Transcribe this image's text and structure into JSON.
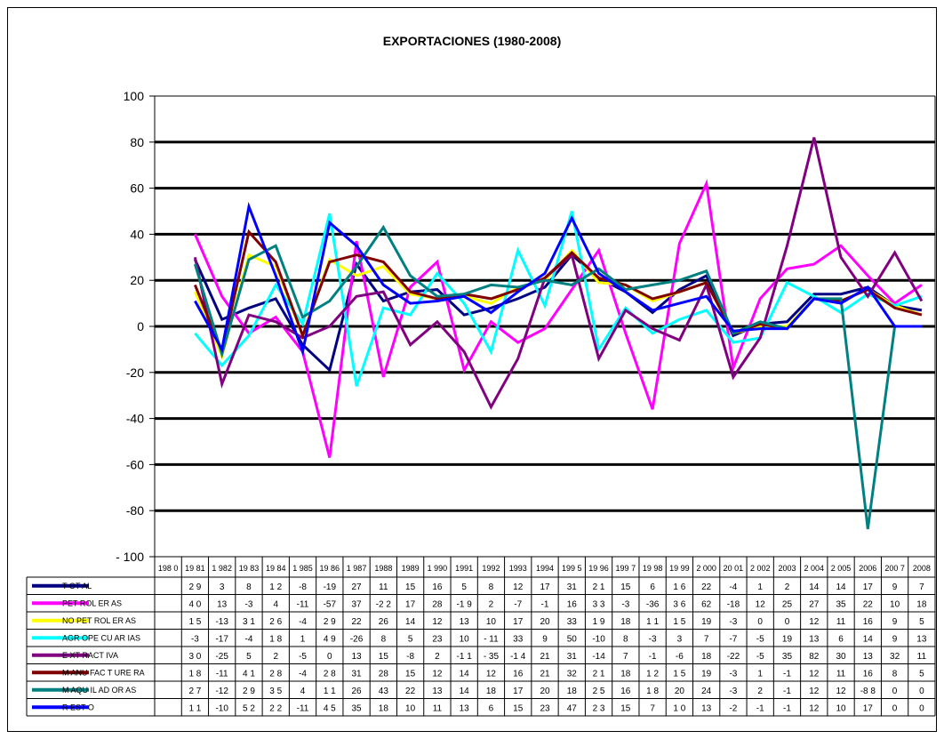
{
  "chart_data": {
    "type": "line",
    "title": "EXPORTACIONES (1980-2008)",
    "xlabel": "",
    "ylabel": "",
    "ylim": [
      -100,
      100
    ],
    "yticks": [
      100,
      80,
      60,
      40,
      20,
      0,
      -20,
      -40,
      -60,
      -80,
      -100
    ],
    "ytick_labels": [
      "100",
      "80",
      "60",
      "40",
      "20",
      "0",
      "-20",
      "-40",
      "-60",
      "-80",
      "- 100"
    ],
    "grid": true,
    "legend": "table-below",
    "categories": [
      "1980",
      "1981",
      "1982",
      "1983",
      "1984",
      "1985",
      "1986",
      "1987",
      "1988",
      "1989",
      "1990",
      "1991",
      "1992",
      "1993",
      "1994",
      "1995",
      "1996",
      "1997",
      "1998",
      "1999",
      "2000",
      "2001",
      "2002",
      "2003",
      "2004",
      "2005",
      "2006",
      "2007",
      "2008"
    ],
    "category_labels": [
      "198 0",
      "19 81",
      "1 982",
      "19 83",
      "19 84",
      "1 985",
      "19 86",
      "1 987",
      "1988",
      "1989",
      "1 990",
      "1991",
      "1992",
      "1993",
      "1994",
      "199 5",
      "19 96",
      "199 7",
      "19 98",
      "19 99",
      "2 000",
      "20 01",
      "2 002",
      "2003",
      "2 004",
      "2 005",
      "2006",
      "200 7",
      "2008"
    ],
    "series": [
      {
        "name": "TOTAL",
        "label": "T OT AL",
        "color": "#000080",
        "values": [
          null,
          29,
          3,
          8,
          12,
          -8,
          -19,
          27,
          11,
          15,
          16,
          5,
          8,
          12,
          17,
          31,
          21,
          15,
          6,
          16,
          22,
          -4,
          1,
          2,
          14,
          14,
          17,
          9,
          7
        ],
        "labels": [
          "",
          "2 9",
          "3",
          "8",
          "1 2",
          "-8",
          "-19",
          "27",
          "11",
          "15",
          "16",
          "5",
          "8",
          "12",
          "17",
          "31",
          "2 1",
          "15",
          "6",
          "1 6",
          "22",
          "-4",
          "1",
          "2",
          "14",
          "14",
          "17",
          "9",
          "7"
        ]
      },
      {
        "name": "PETROLERAS",
        "label": "PET ROL ER AS",
        "color": "#ff00ff",
        "values": [
          null,
          40,
          13,
          -3,
          4,
          -11,
          -57,
          37,
          -22,
          17,
          28,
          -19,
          2,
          -7,
          -1,
          16,
          33,
          -3,
          -36,
          36,
          62,
          -18,
          12,
          25,
          27,
          35,
          22,
          10,
          18
        ],
        "labels": [
          "",
          "4 0",
          "13",
          "-3",
          "4",
          "-11",
          "-57",
          "37",
          "-2 2",
          "17",
          "28",
          "-1 9",
          "2",
          "-7",
          "-1",
          "16",
          "3 3",
          "-3",
          "-36",
          "3 6",
          "62",
          "-18",
          "12",
          "25",
          "27",
          "35",
          "22",
          "10",
          "18"
        ]
      },
      {
        "name": "NO PETROLERAS",
        "label": "NO PET ROL ER AS",
        "color": "#ffff00",
        "values": [
          null,
          15,
          -13,
          31,
          26,
          -4,
          29,
          22,
          26,
          14,
          12,
          13,
          10,
          17,
          20,
          33,
          19,
          18,
          11,
          15,
          19,
          -3,
          0,
          0,
          12,
          11,
          16,
          9,
          5
        ],
        "labels": [
          "",
          "1 5",
          "-13",
          "3 1",
          "2 6",
          "-4",
          "2 9",
          "22",
          "26",
          "14",
          "12",
          "13",
          "10",
          "17",
          "20",
          "33",
          "1 9",
          "18",
          "1 1",
          "1 5",
          "19",
          "-3",
          "0",
          "0",
          "12",
          "11",
          "16",
          "9",
          "5"
        ]
      },
      {
        "name": "AGROPECUARIAS",
        "label": "AGR OPE CU AR IAS",
        "color": "#00ffff",
        "values": [
          null,
          -3,
          -17,
          -4,
          18,
          1,
          49,
          -26,
          8,
          5,
          23,
          10,
          -11,
          33,
          9,
          50,
          -10,
          8,
          -3,
          3,
          7,
          -7,
          -5,
          19,
          13,
          6,
          14,
          9,
          13
        ],
        "labels": [
          "",
          "-3",
          "-17",
          "-4",
          "1 8",
          "1",
          "4 9",
          "-26",
          "8",
          "5",
          "23",
          "10",
          "- 11",
          "33",
          "9",
          "50",
          "-10",
          "8",
          "-3",
          "3",
          "7",
          "-7",
          "-5",
          "19",
          "13",
          "6",
          "14",
          "9",
          "13"
        ]
      },
      {
        "name": "EXTRACTIVA",
        "label": "E XT RACT IVA",
        "color": "#800080",
        "values": [
          null,
          30,
          -25,
          5,
          2,
          -5,
          0,
          13,
          15,
          -8,
          2,
          -11,
          -35,
          -14,
          21,
          31,
          -14,
          7,
          -1,
          -6,
          18,
          -22,
          -5,
          35,
          82,
          30,
          13,
          32,
          11
        ],
        "labels": [
          "",
          "3 0",
          "-25",
          "5",
          "2",
          "-5",
          "0",
          "13",
          "15",
          "-8",
          "2",
          "-1 1",
          "- 35",
          "-1 4",
          "21",
          "31",
          "-14",
          "7",
          "-1",
          "-6",
          "18",
          "-22",
          "-5",
          "35",
          "82",
          "30",
          "13",
          "32",
          "11"
        ]
      },
      {
        "name": "MANUFACTURERA",
        "label": "M ANU FAC T URE RA",
        "color": "#800000",
        "values": [
          null,
          18,
          -11,
          41,
          28,
          -4,
          28,
          31,
          28,
          15,
          12,
          14,
          12,
          16,
          21,
          32,
          21,
          18,
          12,
          15,
          19,
          -3,
          1,
          -1,
          12,
          11,
          16,
          8,
          5
        ],
        "labels": [
          "",
          "1 8",
          "-11",
          "4 1",
          "2 8",
          "-4",
          "2 8",
          "31",
          "28",
          "15",
          "12",
          "14",
          "12",
          "16",
          "21",
          "32",
          "2 1",
          "18",
          "1 2",
          "1 5",
          "19",
          "-3",
          "1",
          "-1",
          "12",
          "11",
          "16",
          "8",
          "5"
        ]
      },
      {
        "name": "MAQUILADORAS",
        "label": "M AQU IL AD OR AS",
        "color": "#008080",
        "values": [
          null,
          27,
          -12,
          29,
          35,
          4,
          11,
          26,
          43,
          22,
          13,
          14,
          18,
          17,
          20,
          18,
          25,
          16,
          18,
          20,
          24,
          -3,
          2,
          -1,
          12,
          12,
          -88,
          0,
          0
        ],
        "labels": [
          "",
          "2 7",
          "-12",
          "2 9",
          "3 5",
          "4",
          "1 1",
          "26",
          "43",
          "22",
          "13",
          "14",
          "18",
          "17",
          "20",
          "18",
          "2 5",
          "16",
          "1 8",
          "20",
          "24",
          "-3",
          "2",
          "-1",
          "12",
          "12",
          "-8 8",
          "0",
          "0"
        ]
      },
      {
        "name": "RESTO",
        "label": "R EST O",
        "color": "#0000ff",
        "values": [
          null,
          11,
          -10,
          52,
          22,
          -11,
          45,
          35,
          18,
          10,
          11,
          13,
          6,
          15,
          23,
          47,
          23,
          15,
          7,
          10,
          13,
          -2,
          -1,
          -1,
          12,
          10,
          17,
          0,
          0
        ],
        "labels": [
          "",
          "1 1",
          "-10",
          "5 2",
          "2 2",
          "-11",
          "4 5",
          "35",
          "18",
          "10",
          "11",
          "13",
          "6",
          "15",
          "23",
          "47",
          "2 3",
          "15",
          "7",
          "1 0",
          "13",
          "-2",
          "-1",
          "-1",
          "12",
          "10",
          "17",
          "0",
          "0"
        ]
      }
    ]
  }
}
